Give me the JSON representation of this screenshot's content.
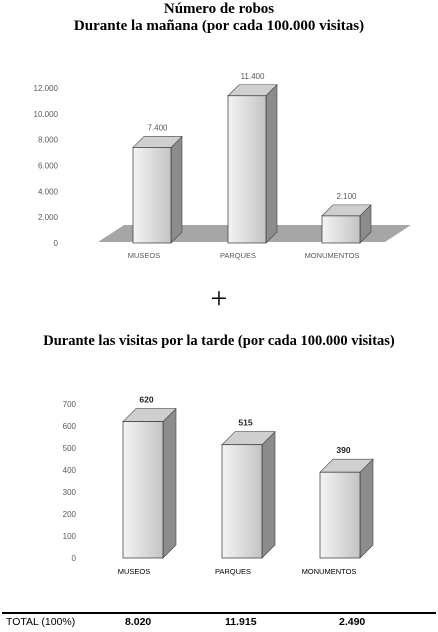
{
  "headings": {
    "title_line1": "Número de robos",
    "title_line2": "Durante la mañana (por cada 100.000 visitas)",
    "plus": "+",
    "title_afternoon": "Durante las visitas por la tarde (por cada 100.000 visitas)"
  },
  "chart_data": [
    {
      "type": "bar",
      "title": "Durante la mañana (por cada 100.000 visitas)",
      "categories": [
        "MUSEOS",
        "PARQUES",
        "MONUMENTOS"
      ],
      "values": [
        7400,
        11400,
        2100
      ],
      "value_labels": [
        "7.400",
        "11.400",
        "2.100"
      ],
      "yticks": [
        "0",
        "2.000",
        "4.000",
        "6.000",
        "8.000",
        "10.000",
        "12.000"
      ],
      "ylim": [
        0,
        12000
      ],
      "grid": false,
      "style": "3d-gray"
    },
    {
      "type": "bar",
      "title": "Durante las visitas por la tarde (por cada 100.000 visitas)",
      "categories": [
        "MUSEOS",
        "PARQUES",
        "MONUMENTOS"
      ],
      "values": [
        620,
        515,
        390
      ],
      "value_labels": [
        "620",
        "515",
        "390"
      ],
      "yticks": [
        "0",
        "100",
        "200",
        "300",
        "400",
        "500",
        "600",
        "700"
      ],
      "ylim": [
        0,
        700
      ],
      "grid": false,
      "style": "3d-gray"
    }
  ],
  "totals": {
    "label": "TOTAL (100%)",
    "museos": "8.020",
    "parques": "11.915",
    "monumentos": "2.490"
  },
  "colors": {
    "bar_front_light": "#f2f2f2",
    "bar_front_dark": "#c4c4c4",
    "bar_side": "#8c8c8c",
    "bar_top": "#cfcfcf",
    "floor": "#a6a6a6",
    "axis_text": "#595959"
  }
}
